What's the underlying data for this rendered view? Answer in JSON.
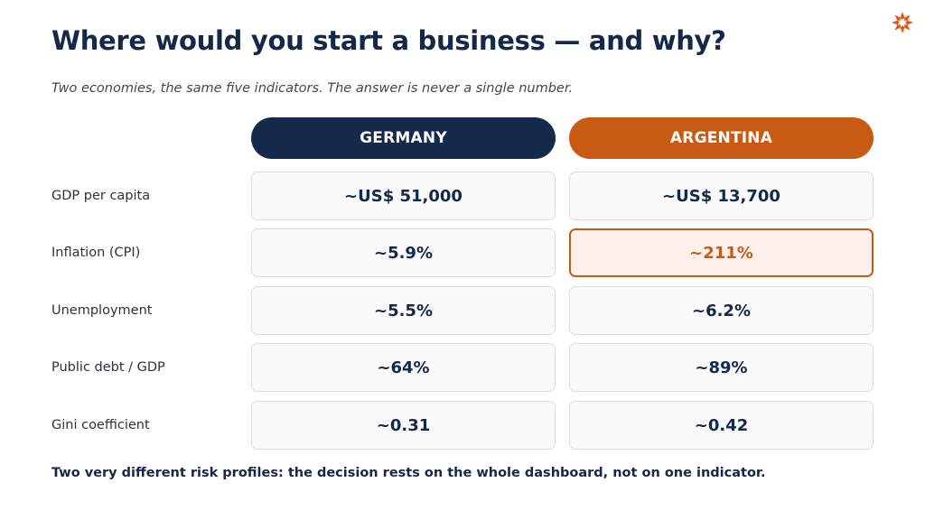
{
  "title": "Where would you start a business — and why?",
  "subtitle": "Two economies, the same five indicators. The answer is never a single number.",
  "logo_icon": "orange-starburst-icon",
  "columns": {
    "germany": {
      "label": "GERMANY",
      "color": "#152a4a"
    },
    "argentina": {
      "label": "ARGENTINA",
      "color": "#c85a14"
    }
  },
  "rows": [
    {
      "label": "GDP per capita",
      "germany": "~US$ 51,000",
      "argentina": "~US$ 13,700"
    },
    {
      "label": "Inflation (CPI)",
      "germany": "~5.9%",
      "argentina": "~211%",
      "highlight": "argentina"
    },
    {
      "label": "Unemployment",
      "germany": "~5.5%",
      "argentina": "~6.2%"
    },
    {
      "label": "Public debt / GDP",
      "germany": "~64%",
      "argentina": "~89%"
    },
    {
      "label": "Gini coefficient",
      "germany": "~0.31",
      "argentina": "~0.42"
    }
  ],
  "footer": "Two very different risk profiles: the decision rests on the whole dashboard, not on one indicator."
}
